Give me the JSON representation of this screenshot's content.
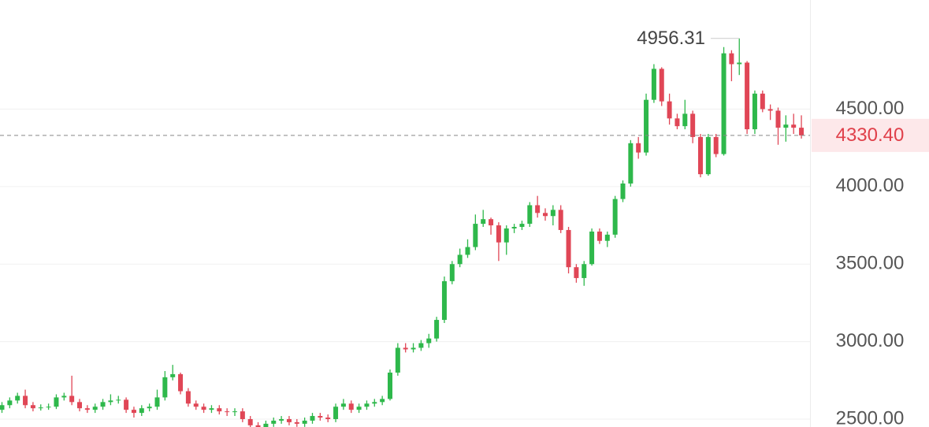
{
  "chart_data": {
    "type": "candlestick",
    "up_color": "#2eb84b",
    "down_color": "#e04656",
    "grid": true,
    "ylim": [
      2449,
      5204
    ],
    "yticks": [
      {
        "value": 2500,
        "label": "2500.00"
      },
      {
        "value": 3000,
        "label": "3000.00"
      },
      {
        "value": 3500,
        "label": "3500.00"
      },
      {
        "value": 4000,
        "label": "4000.00"
      },
      {
        "value": 4500,
        "label": "4500.00"
      }
    ],
    "max_label": {
      "value": 4956.31,
      "label": "4956.31"
    },
    "last_price": {
      "value": 4330.4,
      "label": "4330.40"
    },
    "open": [
      2560,
      2590,
      2620,
      2650,
      2590,
      2570,
      2575,
      2580,
      2640,
      2650,
      2610,
      2570,
      2560,
      2580,
      2610,
      2620,
      2625,
      2560,
      2540,
      2570,
      2580,
      2640,
      2770,
      2790,
      2680,
      2600,
      2580,
      2560,
      2570,
      2550,
      2545,
      2550,
      2500,
      2460,
      2440,
      2470,
      2490,
      2500,
      2480,
      2470,
      2490,
      2520,
      2510,
      2500,
      2580,
      2600,
      2560,
      2580,
      2600,
      2610,
      2630,
      2800,
      2960,
      2950,
      2960,
      2990,
      3020,
      3140,
      3390,
      3500,
      3560,
      3610,
      3760,
      3790,
      3750,
      3640,
      3730,
      3740,
      3760,
      3880,
      3830,
      3810,
      3850,
      3720,
      3480,
      3410,
      3500,
      3710,
      3650,
      3690,
      3920,
      4020,
      4280,
      4220,
      4560,
      4760,
      4550,
      4440,
      4390,
      4470,
      4320,
      4080,
      4320,
      4210,
      4860,
      4790,
      4800,
      4370,
      4600,
      4500,
      4490,
      4380,
      4400,
      4380
    ],
    "high": [
      2610,
      2640,
      2670,
      2690,
      2610,
      2595,
      2600,
      2660,
      2670,
      2780,
      2630,
      2590,
      2600,
      2630,
      2660,
      2650,
      2640,
      2580,
      2590,
      2600,
      2690,
      2810,
      2850,
      2800,
      2700,
      2620,
      2600,
      2590,
      2590,
      2570,
      2570,
      2570,
      2520,
      2480,
      2490,
      2510,
      2520,
      2520,
      2500,
      2510,
      2540,
      2540,
      2530,
      2600,
      2630,
      2620,
      2600,
      2620,
      2630,
      2650,
      2820,
      2990,
      2990,
      2990,
      3010,
      3050,
      3160,
      3420,
      3520,
      3600,
      3660,
      3820,
      3850,
      3800,
      3770,
      3750,
      3760,
      3780,
      3900,
      3940,
      3860,
      3880,
      3880,
      3740,
      3500,
      3520,
      3730,
      3730,
      3710,
      3940,
      4040,
      4300,
      4320,
      4600,
      4790,
      4770,
      4600,
      4470,
      4560,
      4490,
      4340,
      4340,
      4340,
      4900,
      4880,
      4956.31,
      4810,
      4620,
      4620,
      4530,
      4510,
      4460,
      4470,
      4460
    ],
    "low": [
      2540,
      2570,
      2600,
      2570,
      2550,
      2555,
      2560,
      2565,
      2620,
      2590,
      2550,
      2540,
      2540,
      2560,
      2590,
      2600,
      2540,
      2510,
      2520,
      2550,
      2560,
      2620,
      2750,
      2660,
      2580,
      2560,
      2540,
      2540,
      2530,
      2520,
      2520,
      2480,
      2440,
      2420,
      2420,
      2450,
      2470,
      2460,
      2450,
      2450,
      2470,
      2490,
      2480,
      2480,
      2560,
      2540,
      2540,
      2560,
      2580,
      2590,
      2620,
      2780,
      2930,
      2930,
      2940,
      2960,
      3000,
      3120,
      3370,
      3480,
      3540,
      3590,
      3740,
      3690,
      3520,
      3560,
      3700,
      3720,
      3740,
      3800,
      3780,
      3750,
      3700,
      3440,
      3380,
      3360,
      3490,
      3630,
      3610,
      3670,
      3900,
      4000,
      4180,
      4200,
      4540,
      4520,
      4400,
      4370,
      4370,
      4280,
      4060,
      4070,
      4190,
      4200,
      4680,
      4720,
      4340,
      4340,
      4480,
      4430,
      4270,
      4290,
      4340,
      4310
    ],
    "close": [
      2590,
      2620,
      2650,
      2590,
      2570,
      2575,
      2580,
      2640,
      2650,
      2610,
      2570,
      2560,
      2580,
      2610,
      2620,
      2625,
      2560,
      2540,
      2570,
      2580,
      2640,
      2770,
      2790,
      2680,
      2600,
      2580,
      2560,
      2570,
      2550,
      2545,
      2550,
      2500,
      2460,
      2440,
      2470,
      2490,
      2500,
      2480,
      2470,
      2490,
      2520,
      2510,
      2500,
      2580,
      2600,
      2560,
      2580,
      2600,
      2610,
      2630,
      2800,
      2960,
      2950,
      2960,
      2990,
      3020,
      3140,
      3390,
      3500,
      3560,
      3610,
      3760,
      3790,
      3750,
      3640,
      3730,
      3740,
      3760,
      3880,
      3830,
      3810,
      3850,
      3720,
      3480,
      3410,
      3500,
      3710,
      3650,
      3690,
      3920,
      4020,
      4280,
      4220,
      4560,
      4760,
      4550,
      4440,
      4390,
      4470,
      4320,
      4080,
      4320,
      4210,
      4860,
      4790,
      4800,
      4370,
      4600,
      4500,
      4490,
      4380,
      4400,
      4380,
      4330.4
    ]
  }
}
